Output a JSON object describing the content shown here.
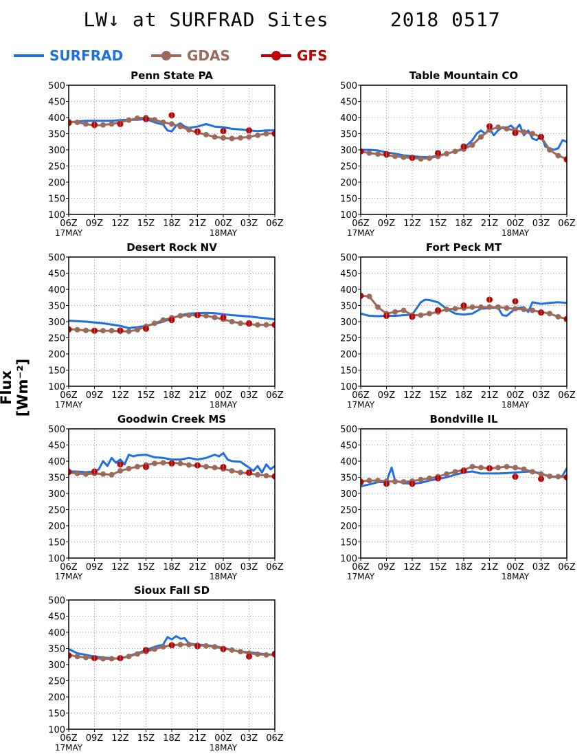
{
  "page": {
    "title": "LW↓ at SURFRAD Sites     2018 0517",
    "ylabel": "Flux [Wm⁻²]"
  },
  "legend": [
    {
      "label": "SURFRAD",
      "color": "#1f6fe0",
      "marker": "none"
    },
    {
      "label": "GDAS",
      "color": "#9b6a5b",
      "marker": "circle"
    },
    {
      "label": "GFS",
      "color": "#c00000",
      "marker": "circle"
    }
  ],
  "axes": {
    "x_ticks": [
      "06Z",
      "09Z",
      "12Z",
      "15Z",
      "18Z",
      "21Z",
      "00Z",
      "03Z",
      "06Z"
    ],
    "x_date_labels": [
      {
        "label": "17MAY",
        "at": "06Z"
      },
      {
        "label": "18MAY",
        "at": "00Z"
      }
    ],
    "xlim": [
      0,
      24
    ],
    "ylim": [
      100,
      500
    ],
    "y_ticks": [
      100,
      150,
      200,
      250,
      300,
      350,
      400,
      450,
      500
    ],
    "grid": true
  },
  "chart_data": [
    {
      "type": "line",
      "title": "Penn State PA",
      "ylim": [
        100,
        500
      ],
      "series": [
        {
          "name": "SURFRAD",
          "x": [
            0,
            1,
            2,
            3,
            4,
            5,
            6,
            7,
            8,
            9,
            10,
            11,
            11.5,
            12,
            12.5,
            13,
            13.5,
            14,
            15,
            16,
            17,
            18,
            19,
            20,
            21,
            22,
            23,
            24
          ],
          "values": [
            385,
            388,
            390,
            390,
            390,
            390,
            392,
            393,
            393,
            395,
            385,
            378,
            360,
            357,
            375,
            382,
            372,
            368,
            372,
            380,
            372,
            370,
            365,
            363,
            360,
            358,
            360,
            360
          ]
        },
        {
          "name": "GDAS",
          "x": [
            0,
            1,
            2,
            3,
            4,
            5,
            6,
            7,
            8,
            9,
            10,
            11,
            12,
            13,
            14,
            15,
            16,
            17,
            18,
            19,
            20,
            21,
            22,
            23,
            24
          ],
          "values": [
            388,
            385,
            380,
            375,
            377,
            380,
            385,
            392,
            398,
            400,
            393,
            385,
            380,
            372,
            362,
            353,
            347,
            340,
            337,
            335,
            337,
            340,
            345,
            350,
            352
          ]
        },
        {
          "name": "GFS",
          "x": [
            0,
            3,
            6,
            9,
            12,
            15,
            18,
            21,
            24
          ],
          "values": [
            383,
            378,
            380,
            395,
            407,
            357,
            358,
            360,
            350
          ]
        }
      ]
    },
    {
      "type": "line",
      "title": "Table Mountain CO",
      "ylim": [
        100,
        500
      ],
      "series": [
        {
          "name": "SURFRAD",
          "x": [
            0,
            1,
            2,
            3,
            4,
            5,
            6,
            7,
            8,
            9,
            10,
            11,
            12,
            13,
            13.5,
            14,
            14.5,
            15,
            15.5,
            16,
            16.5,
            17,
            17.5,
            18,
            18.5,
            19,
            19.5,
            20,
            20.5,
            21,
            21.5,
            22,
            22.5,
            23,
            23.5,
            24
          ],
          "values": [
            300,
            300,
            298,
            292,
            288,
            283,
            280,
            278,
            277,
            282,
            288,
            295,
            305,
            330,
            350,
            360,
            350,
            365,
            345,
            360,
            370,
            368,
            375,
            362,
            378,
            345,
            360,
            335,
            330,
            345,
            310,
            305,
            300,
            305,
            330,
            325
          ]
        },
        {
          "name": "GDAS",
          "x": [
            0,
            1,
            2,
            3,
            4,
            5,
            6,
            7,
            8,
            9,
            10,
            11,
            12,
            13,
            14,
            15,
            16,
            17,
            18,
            19,
            20,
            21,
            22,
            23,
            24
          ],
          "values": [
            295,
            290,
            287,
            283,
            280,
            277,
            275,
            272,
            274,
            280,
            288,
            295,
            302,
            315,
            340,
            362,
            370,
            365,
            360,
            355,
            350,
            340,
            300,
            282,
            272
          ]
        },
        {
          "name": "GFS",
          "x": [
            0,
            3,
            6,
            9,
            12,
            15,
            18,
            21,
            24
          ],
          "values": [
            295,
            287,
            275,
            290,
            310,
            373,
            352,
            340,
            270
          ]
        }
      ]
    },
    {
      "type": "line",
      "title": "Desert Rock NV",
      "ylim": [
        100,
        500
      ],
      "series": [
        {
          "name": "SURFRAD",
          "x": [
            0,
            2,
            4,
            6,
            7,
            8,
            9,
            10,
            11,
            12,
            13,
            14,
            15,
            16,
            17,
            18,
            19,
            20,
            21,
            22,
            23,
            24
          ],
          "values": [
            303,
            300,
            295,
            287,
            280,
            283,
            287,
            293,
            300,
            310,
            320,
            325,
            326,
            327,
            326,
            323,
            320,
            318,
            316,
            313,
            310,
            307
          ]
        },
        {
          "name": "GDAS",
          "x": [
            0,
            1,
            2,
            3,
            4,
            5,
            6,
            7,
            8,
            9,
            10,
            11,
            12,
            13,
            14,
            15,
            16,
            17,
            18,
            19,
            20,
            21,
            22,
            23,
            24
          ],
          "values": [
            277,
            275,
            273,
            272,
            272,
            272,
            270,
            270,
            275,
            285,
            295,
            305,
            312,
            318,
            320,
            320,
            318,
            313,
            307,
            300,
            295,
            292,
            290,
            290,
            290
          ]
        },
        {
          "name": "GFS",
          "x": [
            0,
            3,
            6,
            9,
            12,
            15,
            18,
            21,
            24
          ],
          "values": [
            276,
            272,
            273,
            278,
            305,
            320,
            313,
            295,
            290
          ]
        }
      ]
    },
    {
      "type": "line",
      "title": "Fort Peck MT",
      "ylim": [
        100,
        500
      ],
      "series": [
        {
          "name": "SURFRAD",
          "x": [
            0,
            1,
            2,
            3,
            4,
            5,
            6,
            7,
            7.5,
            8,
            9,
            10,
            11,
            12,
            13,
            14,
            15,
            16,
            16.5,
            17,
            18,
            19,
            19.5,
            20,
            21,
            22,
            23,
            24
          ],
          "values": [
            325,
            318,
            317,
            318,
            318,
            320,
            322,
            360,
            368,
            367,
            360,
            340,
            325,
            322,
            325,
            340,
            342,
            343,
            320,
            318,
            340,
            345,
            330,
            360,
            355,
            358,
            360,
            358
          ]
        },
        {
          "name": "GDAS",
          "x": [
            0,
            1,
            2,
            3,
            4,
            5,
            6,
            7,
            8,
            9,
            10,
            11,
            12,
            13,
            14,
            15,
            16,
            17,
            18,
            19,
            20,
            21,
            22,
            23,
            24
          ],
          "values": [
            380,
            378,
            345,
            325,
            330,
            335,
            320,
            320,
            325,
            330,
            338,
            340,
            342,
            345,
            345,
            345,
            345,
            342,
            340,
            338,
            335,
            330,
            325,
            315,
            308
          ]
        },
        {
          "name": "GFS",
          "x": [
            0,
            3,
            6,
            9,
            12,
            15,
            18,
            21,
            24
          ],
          "values": [
            380,
            318,
            315,
            335,
            350,
            368,
            363,
            328,
            308
          ]
        }
      ]
    },
    {
      "type": "line",
      "title": "Goodwin Creek MS",
      "ylim": [
        100,
        500
      ],
      "series": [
        {
          "name": "SURFRAD",
          "x": [
            0,
            1,
            2,
            3,
            3.5,
            4,
            4.5,
            5,
            5.5,
            6,
            6.5,
            7,
            7.5,
            8,
            9,
            10,
            11,
            12,
            13,
            14,
            15,
            16,
            17,
            17.5,
            18,
            18.5,
            19,
            20,
            21,
            21.5,
            22,
            22.5,
            23,
            23.5,
            24
          ],
          "values": [
            368,
            368,
            366,
            368,
            375,
            400,
            385,
            410,
            395,
            405,
            390,
            420,
            415,
            418,
            420,
            412,
            410,
            405,
            405,
            410,
            405,
            410,
            420,
            415,
            425,
            405,
            400,
            398,
            380,
            370,
            385,
            365,
            390,
            375,
            385
          ]
        },
        {
          "name": "GDAS",
          "x": [
            0,
            1,
            2,
            3,
            4,
            5,
            6,
            7,
            8,
            9,
            10,
            11,
            12,
            13,
            14,
            15,
            16,
            17,
            18,
            19,
            20,
            21,
            22,
            23,
            24
          ],
          "values": [
            365,
            362,
            360,
            362,
            360,
            358,
            370,
            377,
            383,
            388,
            393,
            395,
            395,
            393,
            388,
            386,
            383,
            380,
            376,
            370,
            365,
            362,
            358,
            355,
            352
          ]
        },
        {
          "name": "GFS",
          "x": [
            0,
            3,
            6,
            9,
            12,
            15,
            18,
            21,
            24
          ],
          "values": [
            367,
            368,
            390,
            382,
            393,
            387,
            382,
            365,
            353
          ]
        }
      ]
    },
    {
      "type": "line",
      "title": "Bondville IL",
      "ylim": [
        100,
        500
      ],
      "series": [
        {
          "name": "SURFRAD",
          "x": [
            0,
            1,
            2,
            3,
            3.3,
            3.6,
            4,
            5,
            6,
            7,
            8,
            9,
            10,
            11,
            12,
            13,
            14,
            15,
            16,
            17,
            18,
            19,
            20,
            21,
            22,
            23,
            23.5,
            24
          ],
          "values": [
            322,
            328,
            335,
            335,
            360,
            380,
            340,
            332,
            330,
            333,
            340,
            345,
            350,
            358,
            365,
            368,
            362,
            362,
            362,
            363,
            365,
            367,
            368,
            362,
            352,
            350,
            355,
            378
          ]
        },
        {
          "name": "GDAS",
          "x": [
            0,
            1,
            2,
            3,
            4,
            5,
            6,
            7,
            8,
            9,
            10,
            11,
            12,
            13,
            14,
            15,
            16,
            17,
            18,
            19,
            20,
            21,
            22,
            23,
            24
          ],
          "values": [
            338,
            340,
            340,
            338,
            337,
            336,
            338,
            343,
            347,
            352,
            360,
            367,
            373,
            383,
            380,
            377,
            380,
            383,
            380,
            375,
            367,
            360,
            353,
            352,
            350
          ]
        },
        {
          "name": "GFS",
          "x": [
            0,
            3,
            6,
            9,
            12,
            15,
            18,
            21,
            24
          ],
          "values": [
            335,
            330,
            330,
            347,
            370,
            378,
            352,
            345,
            350
          ]
        }
      ]
    },
    {
      "type": "line",
      "title": "Sioux Fall SD",
      "ylim": [
        100,
        500
      ],
      "series": [
        {
          "name": "SURFRAD",
          "x": [
            0,
            1,
            2,
            3,
            4,
            5,
            6,
            7,
            8,
            9,
            10,
            11,
            11.5,
            12,
            12.5,
            13,
            13.5,
            14,
            15,
            16,
            17,
            18,
            19,
            20,
            21,
            22,
            23,
            24
          ],
          "values": [
            348,
            335,
            330,
            325,
            322,
            320,
            318,
            327,
            335,
            345,
            355,
            362,
            385,
            378,
            388,
            380,
            382,
            365,
            362,
            360,
            357,
            352,
            345,
            340,
            338,
            335,
            332,
            330
          ]
        },
        {
          "name": "GDAS",
          "x": [
            0,
            1,
            2,
            3,
            4,
            5,
            6,
            7,
            8,
            9,
            10,
            11,
            12,
            13,
            14,
            15,
            16,
            17,
            18,
            19,
            20,
            21,
            22,
            23,
            24
          ],
          "values": [
            330,
            325,
            322,
            320,
            318,
            318,
            320,
            325,
            333,
            340,
            348,
            355,
            360,
            362,
            362,
            360,
            358,
            355,
            350,
            345,
            340,
            335,
            332,
            330,
            330
          ]
        },
        {
          "name": "GFS",
          "x": [
            0,
            3,
            6,
            9,
            12,
            15,
            18,
            21,
            24
          ],
          "values": [
            328,
            320,
            320,
            345,
            360,
            357,
            348,
            325,
            333
          ]
        }
      ]
    }
  ]
}
